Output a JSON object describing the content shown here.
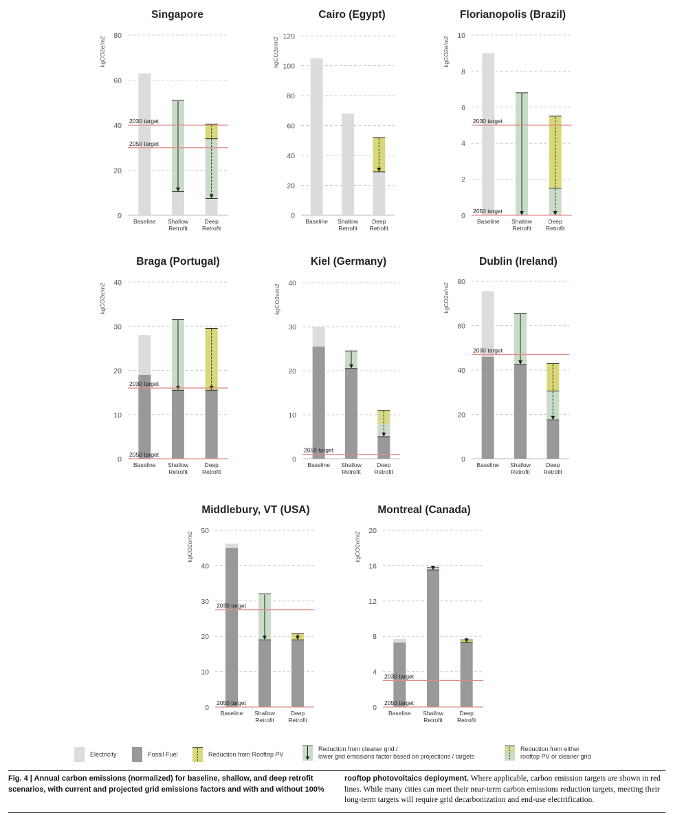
{
  "colors": {
    "electricity": "#dcdcdc",
    "fossil": "#999999",
    "pv": "#d8d87a",
    "grid": "#c9dcc7",
    "either": "#c9dcc7",
    "target": "#e08a8a",
    "gridline": "#cccccc"
  },
  "chart_data": [
    {
      "type": "bar",
      "title": "Singapore",
      "ylabel": "kgCO2e/m2",
      "categories": [
        "Baseline",
        "Shallow\nRetrofit",
        "Deep\nRetrofit"
      ],
      "yticks": [
        0,
        20,
        40,
        60,
        80
      ],
      "ylim": [
        0,
        80
      ],
      "bars": [
        {
          "electricity": 63,
          "fossil": 0
        },
        {
          "electricity": 10.5,
          "fossil": 0,
          "grid_from": 51,
          "grid_to": 10.5
        },
        {
          "electricity": 7.5,
          "fossil": 0,
          "pv_from": 40.5,
          "pv_to": 34,
          "grid_from": 34,
          "grid_to": 7.5
        }
      ],
      "targets": [
        {
          "label": "2030 target",
          "value": 40
        },
        {
          "label": "2050 target",
          "value": 30
        }
      ]
    },
    {
      "type": "bar",
      "title": "Cairo (Egypt)",
      "ylabel": "kgCO2e/m2",
      "categories": [
        "Baseline",
        "Shallow\nRetrofit",
        "Deep\nRetrofit"
      ],
      "yticks": [
        0,
        20,
        40,
        60,
        80,
        100,
        120
      ],
      "ylim": [
        0,
        120
      ],
      "bars": [
        {
          "electricity": 105,
          "fossil": 0
        },
        {
          "electricity": 68,
          "fossil": 0
        },
        {
          "electricity": 29,
          "fossil": 0,
          "pv_from": 52,
          "pv_to": 29
        }
      ],
      "targets": []
    },
    {
      "type": "bar",
      "title": "Florianopolis (Brazil)",
      "ylabel": "kgCO2e/m2",
      "categories": [
        "Baseline",
        "Shallow\nRetrofit",
        "Deep\nRetrofit"
      ],
      "yticks": [
        0,
        2,
        4,
        6,
        8,
        10
      ],
      "ylim": [
        0,
        10
      ],
      "bars": [
        {
          "electricity": 9,
          "fossil": 0
        },
        {
          "electricity": 0,
          "fossil": 0,
          "grid_from": 6.8,
          "grid_to": 0
        },
        {
          "electricity": 0,
          "fossil": 0,
          "pv_from": 5.5,
          "pv_to": 1.5,
          "grid_from": 1.5,
          "grid_to": 0
        }
      ],
      "targets": [
        {
          "label": "2030 target",
          "value": 5
        },
        {
          "label": "2050 target",
          "value": 0
        }
      ]
    },
    {
      "type": "bar",
      "title": "Braga (Portugal)",
      "ylabel": "kgCO2e/m2",
      "categories": [
        "Baseline",
        "Shallow\nRetrofit",
        "Deep\nRetrofit"
      ],
      "yticks": [
        0,
        10,
        20,
        30,
        40
      ],
      "ylim": [
        0,
        40
      ],
      "bars": [
        {
          "fossil": 19,
          "electricity": 9
        },
        {
          "fossil": 15.5,
          "electricity": 0,
          "grid_from": 31.5,
          "grid_to": 15.5
        },
        {
          "fossil": 15.5,
          "electricity": 0,
          "pv_from": 29.5,
          "pv_to": 15.5
        }
      ],
      "targets": [
        {
          "label": "2030 target",
          "value": 16
        },
        {
          "label": "2050 target",
          "value": 0
        }
      ]
    },
    {
      "type": "bar",
      "title": "Kiel (Germany)",
      "ylabel": "kgCO2e/m2",
      "categories": [
        "Baseline",
        "Shallow\nRetrofit",
        "Deep\nRetrofit"
      ],
      "yticks": [
        0,
        10,
        20,
        30,
        40
      ],
      "ylim": [
        0,
        40
      ],
      "bars": [
        {
          "fossil": 25.5,
          "electricity": 4.5
        },
        {
          "fossil": 20.5,
          "electricity": 0,
          "grid_from": 24.5,
          "grid_to": 20.5
        },
        {
          "fossil": 5,
          "electricity": 0,
          "pv_from": 11,
          "pv_to": 5,
          "either": true
        }
      ],
      "targets": [
        {
          "label": "2050 target",
          "value": 1
        }
      ]
    },
    {
      "type": "bar",
      "title": "Dublin (Ireland)",
      "ylabel": "kgCO2e/m2",
      "categories": [
        "Baseline",
        "Shallow\nRetrofit",
        "Deep\nRetrofit"
      ],
      "yticks": [
        0,
        20,
        40,
        60,
        80
      ],
      "ylim": [
        0,
        80
      ],
      "bars": [
        {
          "fossil": 46,
          "electricity": 29.5
        },
        {
          "fossil": 42.5,
          "electricity": 0,
          "grid_from": 65.5,
          "grid_to": 42.5
        },
        {
          "fossil": 17.5,
          "electricity": 0,
          "pv_from": 43,
          "pv_to": 30.5,
          "grid_from": 30.5,
          "grid_to": 17.5
        }
      ],
      "targets": [
        {
          "label": "2030 target",
          "value": 47
        }
      ]
    },
    {
      "type": "bar",
      "title": "Middlebury, VT (USA)",
      "ylabel": "kgCO2e/m2",
      "categories": [
        "Baseline",
        "Shallow\nRetrofit",
        "Deep\nRetrofit"
      ],
      "yticks": [
        0,
        10,
        20,
        30,
        40,
        50
      ],
      "ylim": [
        0,
        50
      ],
      "bars": [
        {
          "fossil": 45,
          "electricity": 1.2
        },
        {
          "fossil": 19,
          "electricity": 0,
          "grid_from": 32,
          "grid_to": 19
        },
        {
          "fossil": 19,
          "electricity": 0,
          "pv_from": 20.8,
          "pv_to": 19
        }
      ],
      "targets": [
        {
          "label": "2030 target",
          "value": 27.5
        },
        {
          "label": "2050 target",
          "value": 0
        }
      ]
    },
    {
      "type": "bar",
      "title": "Montreal (Canada)",
      "ylabel": "kgCO2e/m2",
      "categories": [
        "Baseline",
        "Shallow\nRetrofit",
        "Deep\nRetrofit"
      ],
      "yticks": [
        0,
        4,
        8,
        12,
        16,
        20
      ],
      "ylim": [
        0,
        20
      ],
      "bars": [
        {
          "fossil": 7.3,
          "electricity": 0.4
        },
        {
          "fossil": 15.5,
          "electricity": 0,
          "grid_from": 15.8,
          "grid_to": 15.5
        },
        {
          "fossil": 7.3,
          "electricity": 0,
          "pv_from": 7.6,
          "pv_to": 7.3
        }
      ],
      "targets": [
        {
          "label": "2030 target",
          "value": 3
        },
        {
          "label": "2050 target",
          "value": 0
        }
      ]
    }
  ],
  "legend": [
    {
      "label": "Electricity",
      "icon": "electricity-swatch"
    },
    {
      "label": "Fossil Fuel",
      "icon": "fossil-swatch"
    },
    {
      "label": "Reduction from Rooftop PV",
      "icon": "pv-swatch"
    },
    {
      "label": "Reduction from cleaner grid /",
      "label2": "lower grid emissions factor based on projections / targets",
      "icon": "grid-swatch"
    },
    {
      "label": "Reduction from either",
      "label2": "rooftop PV or cleaner grid",
      "icon": "either-swatch"
    }
  ],
  "caption": {
    "fig": "Fig. 4 | Annual carbon emissions (normalized) for baseline, shallow, and deep retrofit scenarios, with current and projected grid emissions factors and with and without 100% rooftop photovoltaics deployment.",
    "text": " Where applicable, carbon emission targets are shown in red lines. While many cities can meet their near-term carbon emissions reduction targets, meeting their long-term targets will require grid decarbonization and end-use electrification."
  }
}
